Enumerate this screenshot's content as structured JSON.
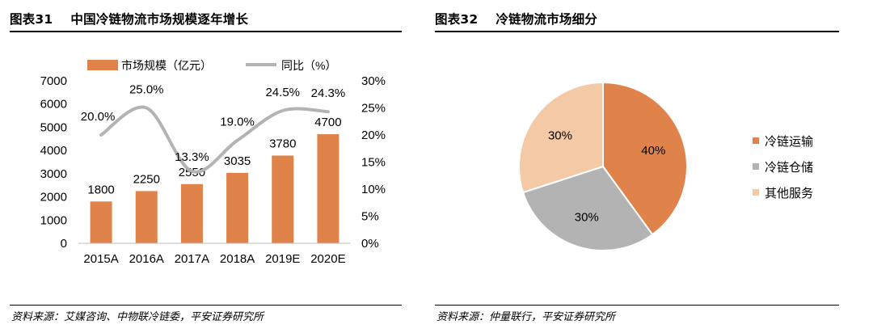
{
  "left_panel": {
    "title_num": "图表31",
    "title_text": "中国冷链物流市场规模逐年增长",
    "source": "资料来源：艾媒咨询、中物联冷链委，平安证券研究所"
  },
  "right_panel": {
    "title_num": "图表32",
    "title_text": "冷链物流市场细分",
    "source": "资料来源：仲量联行，平安证券研究所"
  },
  "colors": {
    "bar": "#e0834a",
    "line": "#b3b3b3",
    "slice1": "#e0834a",
    "slice2": "#b3b3b3",
    "slice3": "#f4c9a6"
  },
  "chart_data": [
    {
      "type": "bar",
      "categories": [
        "2015A",
        "2016A",
        "2017A",
        "2018A",
        "2019E",
        "2020E"
      ],
      "series": [
        {
          "name": "市场规模（亿元）",
          "type": "bar",
          "axis": "left",
          "values": [
            1800,
            2250,
            2550,
            3035,
            3780,
            4700
          ],
          "labels": [
            "1800",
            "2250",
            "2550",
            "3035",
            "3780",
            "4700"
          ]
        },
        {
          "name": "同比（%）",
          "type": "line",
          "axis": "right",
          "values": [
            20.0,
            25.0,
            13.3,
            19.0,
            24.5,
            24.3
          ],
          "labels": [
            "20.0%",
            "25.0%",
            "13.3%",
            "19.0%",
            "24.5%",
            "24.3%"
          ]
        }
      ],
      "y_left": {
        "range": [
          0,
          7000
        ],
        "ticks": [
          "0",
          "1000",
          "2000",
          "3000",
          "4000",
          "5000",
          "6000",
          "7000"
        ]
      },
      "y_right": {
        "range": [
          0,
          30
        ],
        "ticks": [
          "0%",
          "5%",
          "10%",
          "15%",
          "20%",
          "25%",
          "30%"
        ]
      },
      "legend_position": "top",
      "grid": false
    },
    {
      "type": "pie",
      "categories": [
        "冷链运输",
        "冷链仓储",
        "其他服务"
      ],
      "values": [
        40,
        30,
        30
      ],
      "labels": [
        "40%",
        "30%",
        "30%"
      ],
      "legend_position": "right"
    }
  ]
}
